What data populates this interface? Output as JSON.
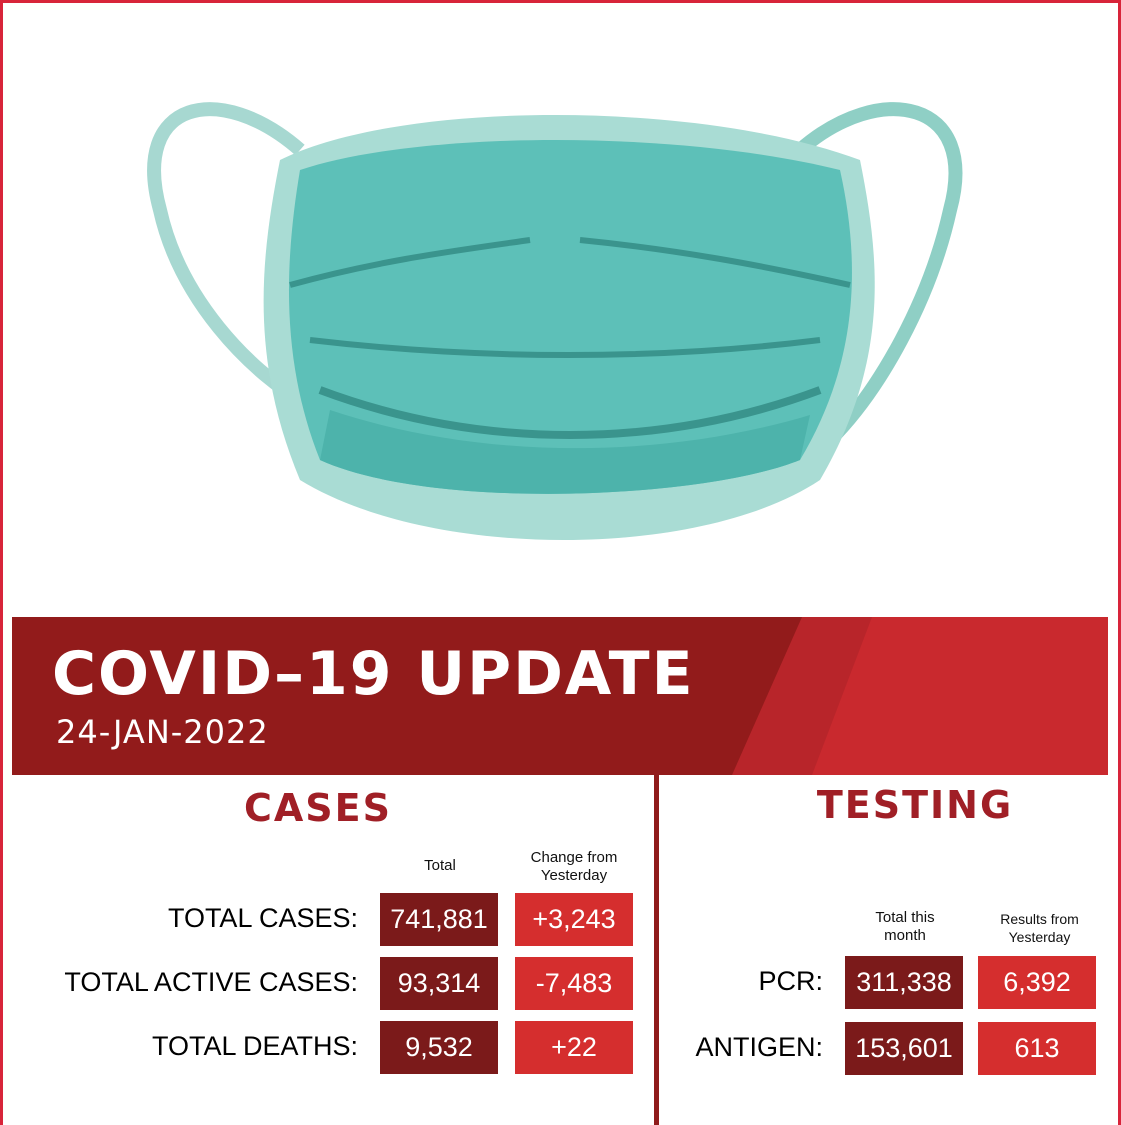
{
  "banner": {
    "title": "COVID–19 UPDATE",
    "date": "24-JAN-2022"
  },
  "cases": {
    "title": "CASES",
    "columns": [
      "Total",
      "Change from Yesterday"
    ],
    "rows": [
      {
        "label": "TOTAL CASES:",
        "total": "741,881",
        "change": "+3,243"
      },
      {
        "label": "TOTAL ACTIVE CASES:",
        "total": "93,314",
        "change": "-7,483"
      },
      {
        "label": "TOTAL DEATHS:",
        "total": "9,532",
        "change": "+22"
      }
    ]
  },
  "testing": {
    "title": "TESTING",
    "columns": [
      "Total this month",
      "Results from Yesterday"
    ],
    "rows": [
      {
        "label": "PCR:",
        "total": "311,338",
        "change": "6,392"
      },
      {
        "label": "ANTIGEN:",
        "total": "153,601",
        "change": "613"
      }
    ]
  }
}
